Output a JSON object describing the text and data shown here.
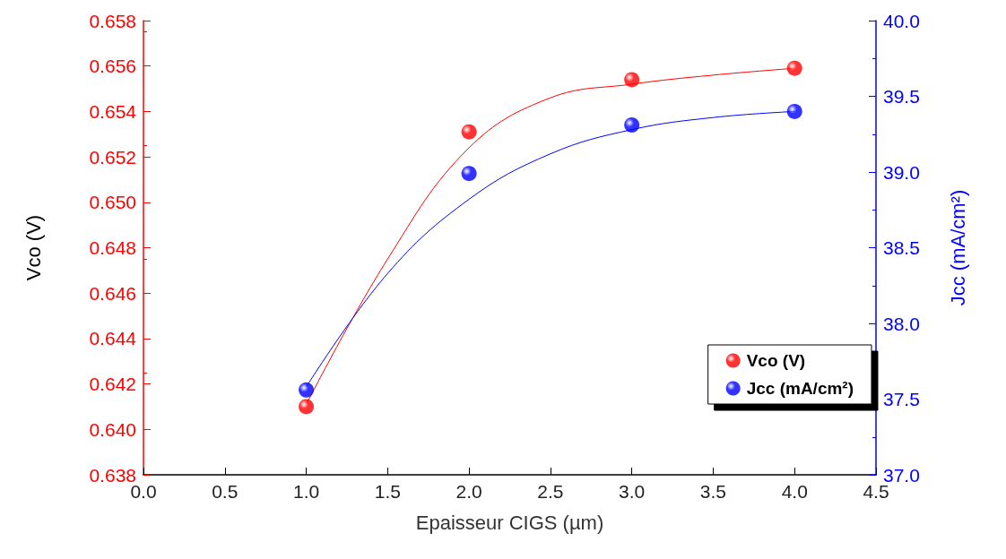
{
  "chart_data": {
    "type": "scatter",
    "xlabel": "Epaisseur CIGS (µm)",
    "ylabel": "Vco (V)",
    "y2label": "Jcc (mA/cm²)",
    "xlim": [
      0,
      4.5
    ],
    "xticks": [
      {
        "value": 0,
        "label": "0.0"
      },
      0.5,
      {
        "value": 1,
        "label": "1.0"
      },
      1.5,
      {
        "value": 2,
        "label": "2.0"
      },
      2.5,
      {
        "value": 3,
        "label": "3.0"
      },
      3.5,
      {
        "value": 4,
        "label": "4.0"
      },
      4.5
    ],
    "ylim": [
      0.638,
      0.658
    ],
    "yticks": [
      0.638,
      {
        "value": 0.64,
        "label": "0.640"
      },
      0.642,
      0.644,
      0.646,
      0.648,
      {
        "value": 0.65,
        "label": "0.650"
      },
      0.652,
      0.654,
      0.656,
      0.658
    ],
    "y2lim": [
      37,
      40
    ],
    "y2ticks": [
      {
        "value": 37,
        "label": "37.0"
      },
      37.5,
      {
        "value": 38,
        "label": "38.0"
      },
      38.5,
      {
        "value": 39,
        "label": "39.0"
      },
      39.5,
      {
        "value": 40,
        "label": "40.0"
      }
    ],
    "x": [
      1,
      2,
      3,
      4
    ],
    "marker": "circle",
    "legend": "right",
    "grid": false,
    "series": [
      {
        "type": "line",
        "marker": "none",
        "color": "#ff0000",
        "x": [
          1,
          1.5,
          2,
          2.5,
          3,
          3.5,
          4
        ],
        "values": [
          0.6411,
          0.6475,
          0.6524,
          0.6546,
          0.6552,
          0.6556,
          0.6559
        ]
      },
      {
        "type": "line",
        "marker": "none",
        "color": "#0000ff",
        "axis": "y2",
        "x": [
          1,
          1.5,
          2,
          2.5,
          3,
          3.5,
          4
        ],
        "values": [
          37.58,
          38.33,
          38.82,
          39.12,
          39.28,
          39.36,
          39.4
        ]
      },
      {
        "name": "Vco (V)",
        "color": "#ff0000",
        "values": [
          0.641,
          0.6531,
          0.6554,
          0.6559
        ]
      },
      {
        "name": "Jcc (mA/cm²)",
        "color": "#0000ff",
        "axis": "y2",
        "values": [
          37.56,
          38.99,
          39.31,
          39.4
        ]
      }
    ]
  }
}
